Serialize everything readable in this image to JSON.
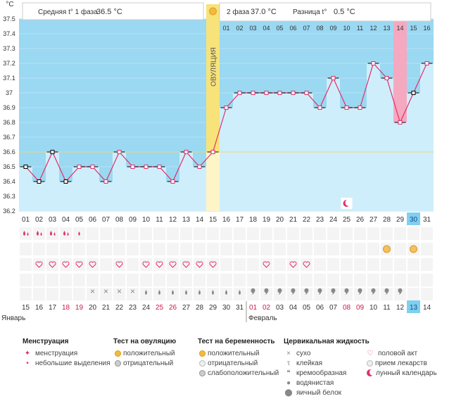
{
  "axis": {
    "unit": "°C",
    "y_ticks": [
      "37.5",
      "37.4",
      "37.3",
      "37.2",
      "37.1",
      "37",
      "36.9",
      "36.8",
      "36.7",
      "36.6",
      "36.5",
      "36.4",
      "36.3",
      "36.2"
    ]
  },
  "header": {
    "phase1_label": "Средняя t° 1 фаза",
    "phase1_value": "36.5 °C",
    "phase2_label": "2 фаза",
    "phase2_value": "37.0 °C",
    "diff_label": "Разница t°",
    "diff_value": "0.5 °C",
    "ovulation_label": "ОВУЛЯЦИЯ"
  },
  "months": {
    "first": "Январь",
    "second": "Февраль"
  },
  "chart_data": {
    "type": "line",
    "y_range": [
      36.2,
      37.5
    ],
    "coverline": 36.6,
    "cycle_days": [
      "01",
      "02",
      "03",
      "04",
      "05",
      "06",
      "07",
      "08",
      "09",
      "10",
      "11",
      "12",
      "13",
      "14",
      "15",
      "16",
      "17",
      "18",
      "19",
      "20",
      "21",
      "22",
      "23",
      "24",
      "25",
      "26",
      "27",
      "28",
      "29",
      "30",
      "31"
    ],
    "post_ovulation_day_labels": [
      "01",
      "02",
      "03",
      "04",
      "05",
      "06",
      "07",
      "08",
      "09",
      "10",
      "11",
      "12",
      "13",
      "14",
      "15",
      "16"
    ],
    "dates": [
      "15",
      "16",
      "17",
      "18",
      "19",
      "20",
      "21",
      "22",
      "23",
      "24",
      "25",
      "26",
      "27",
      "28",
      "29",
      "30",
      "31",
      "01",
      "02",
      "03",
      "04",
      "05",
      "06",
      "07",
      "08",
      "09",
      "10",
      "11",
      "12",
      "13",
      "14"
    ],
    "weekend_dates": [
      3,
      4,
      10,
      11,
      17,
      18,
      24,
      25
    ],
    "today_index": 29,
    "ovulation_index": 14,
    "highlight_index": 28,
    "temperatures": [
      36.5,
      36.4,
      36.6,
      36.4,
      36.5,
      36.5,
      36.4,
      36.6,
      36.5,
      36.5,
      36.5,
      36.4,
      36.6,
      36.5,
      36.6,
      36.9,
      37.0,
      37.0,
      37.0,
      37.0,
      37.0,
      37.0,
      36.9,
      37.1,
      36.9,
      36.9,
      37.2,
      37.1,
      36.8,
      37.0,
      37.2
    ],
    "black_markers": [
      0,
      1,
      2,
      3,
      29
    ],
    "menstruation_days": [
      0,
      1,
      2,
      3
    ],
    "light_spotting_days": [
      4
    ],
    "pregnancy_test_positive_days": [
      27,
      29
    ],
    "intercourse_days": [
      1,
      2,
      3,
      4,
      5,
      7,
      9,
      10,
      11,
      12,
      13,
      14,
      18,
      20,
      21
    ],
    "dry_days": [
      5,
      6,
      7,
      8
    ],
    "watery_days": [
      9,
      10,
      11,
      12,
      13,
      14,
      15,
      16
    ],
    "creamy_days": [
      17,
      18,
      19,
      20,
      21,
      22,
      23,
      24,
      25,
      26,
      27,
      28
    ],
    "lunar_days": [
      24
    ]
  },
  "legend": {
    "menstruation": {
      "title": "Менструация",
      "items": [
        "менструация",
        "небольшие выделения"
      ]
    },
    "ovulation_test": {
      "title": "Тест на овуляцию",
      "items": [
        "положительный",
        "отрицательный"
      ]
    },
    "pregnancy_test": {
      "title": "Тест на беременность",
      "items": [
        "положительный",
        "отрицательный",
        "слабоположительный"
      ]
    },
    "cervical": {
      "title": "Цервикальная жидкость",
      "items": [
        "сухо",
        "клейкая",
        "кремообразная",
        "водянистая",
        "яичный белок"
      ]
    },
    "other": {
      "items": [
        "половой акт",
        "прием лекарств",
        "лунный календарь"
      ]
    }
  }
}
